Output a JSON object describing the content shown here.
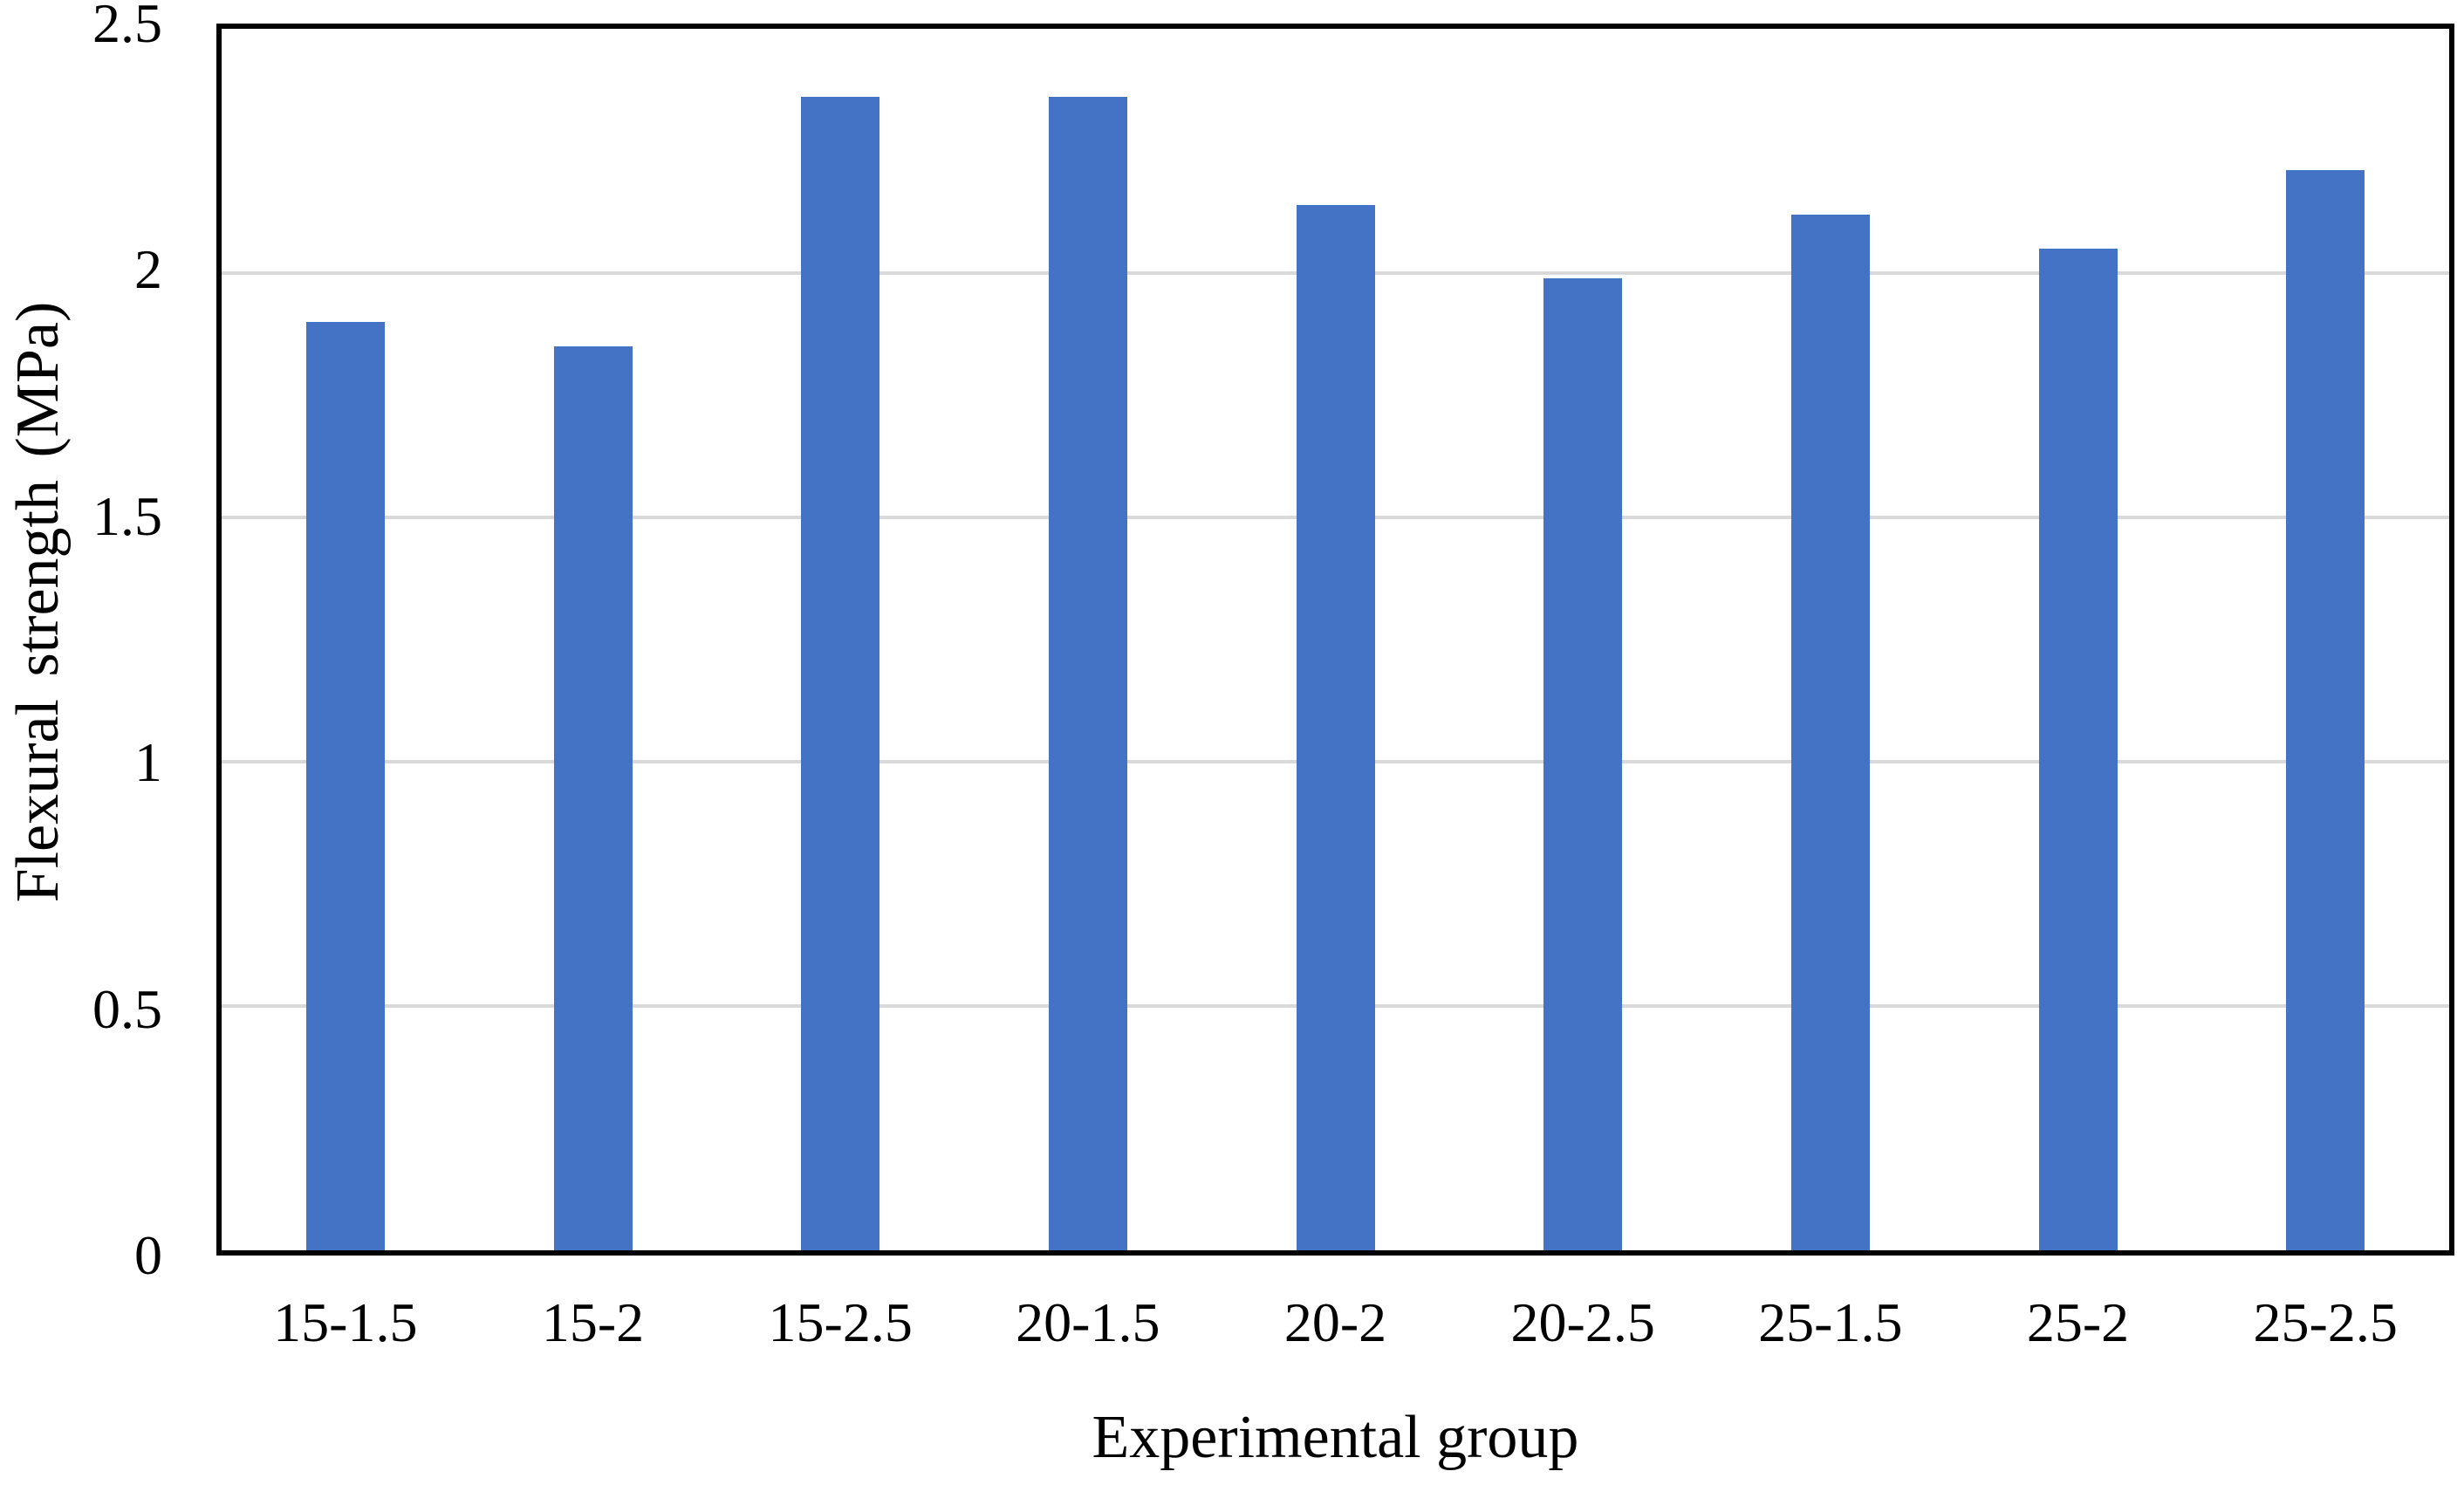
{
  "chart_data": {
    "type": "bar",
    "title": "",
    "categories": [
      "15-1.5",
      "15-2",
      "15-2.5",
      "20-1.5",
      "20-2",
      "20-2.5",
      "25-1.5",
      "25-2",
      "25-2.5"
    ],
    "values": [
      1.9,
      1.85,
      2.36,
      2.36,
      2.14,
      1.99,
      2.12,
      2.05,
      2.21
    ],
    "xlabel": "Experimental group",
    "ylabel": "Flexural strength  (MPa)",
    "ylim": [
      0,
      2.5
    ],
    "ytick_interval": 0.5,
    "ytick_labels": [
      "2.5",
      "2",
      "1.5",
      "1",
      "0.5",
      "0"
    ],
    "grid": "horizontal",
    "legend_position": "none",
    "bar_color": "#4472C4",
    "gridline_color": "#D9D9D9",
    "axis_color": "#000000",
    "text_color": "#000000"
  }
}
